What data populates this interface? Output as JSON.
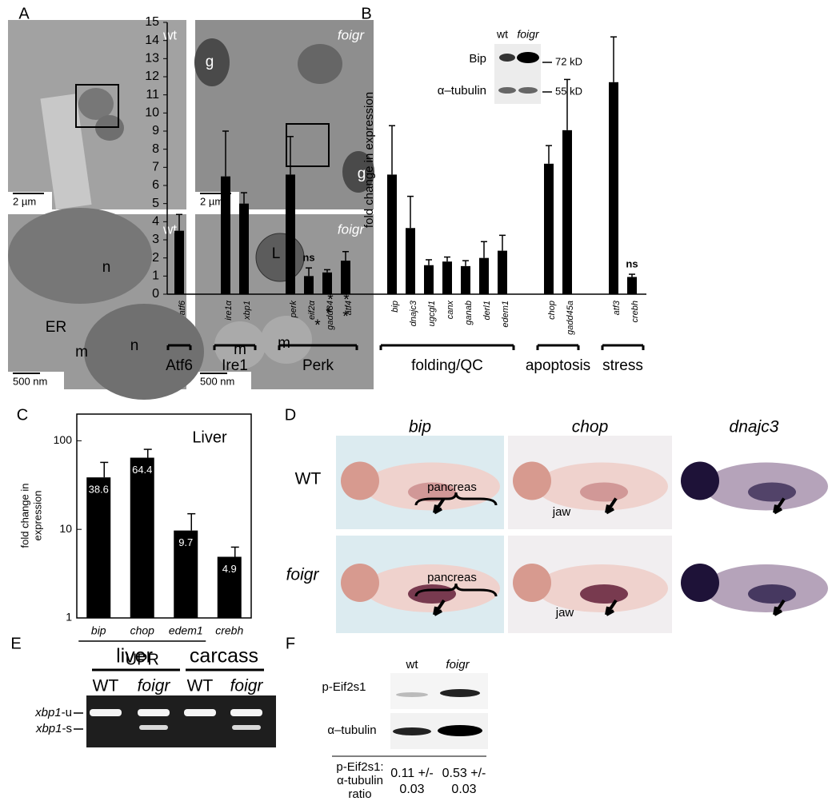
{
  "panel_labels": [
    "A",
    "B",
    "C",
    "D",
    "E",
    "F"
  ],
  "panel_a": {
    "images": [
      {
        "genotype": "wt",
        "scale": "2 µm",
        "labels": []
      },
      {
        "genotype": "foigr",
        "scale": "2 µm",
        "labels": [
          "g",
          "g"
        ]
      },
      {
        "genotype": "wt",
        "scale": "500 nm",
        "labels": [
          "n",
          "ER",
          "n",
          "m"
        ]
      },
      {
        "genotype": "foigr",
        "scale": "500 nm",
        "labels": [
          "L",
          "m",
          "m",
          "*",
          "*",
          "*",
          "*",
          "*"
        ]
      }
    ]
  },
  "chart_data": [
    {
      "type": "bar",
      "y_label": "fold change in expression",
      "categories": [
        "atf6",
        "ire1α",
        "xbp1",
        "perk",
        "eif2α",
        "gadd34",
        "atf4",
        "bip",
        "dnajc3",
        "ugcgl1",
        "canx",
        "ganab",
        "derl1",
        "edem1",
        "chop",
        "gadd45a",
        "atf3",
        "crebh"
      ],
      "category_groups": [
        "Atf6",
        "Ire1",
        "Ire1",
        "Perk",
        "Perk",
        "Perk",
        "Perk",
        "folding/QC",
        "folding/QC",
        "folding/QC",
        "folding/QC",
        "folding/QC",
        "folding/QC",
        "folding/QC",
        "apoptosis",
        "apoptosis",
        "stress",
        "stress"
      ],
      "values": [
        3.5,
        6.5,
        5.0,
        6.6,
        1.0,
        1.2,
        1.85,
        6.6,
        3.65,
        1.6,
        1.8,
        1.55,
        2.0,
        2.4,
        7.2,
        9.05,
        11.7,
        0.95
      ],
      "errors": [
        0.9,
        2.5,
        0.6,
        2.1,
        0.45,
        0.15,
        0.5,
        2.7,
        1.75,
        0.3,
        0.25,
        0.3,
        0.9,
        0.85,
        1.0,
        2.8,
        2.5,
        0.15
      ],
      "value_notes": [
        null,
        null,
        null,
        null,
        "ns",
        null,
        null,
        null,
        null,
        null,
        null,
        null,
        null,
        null,
        null,
        null,
        null,
        "ns"
      ],
      "color": "#000000",
      "ylim": [
        0,
        15
      ],
      "yticks": [
        0,
        1,
        2,
        3,
        4,
        5,
        6,
        7,
        8,
        9,
        10,
        11,
        12,
        13,
        14,
        15
      ],
      "inset": {
        "columns": [
          "wt",
          "foigr"
        ],
        "rows": [
          "Bip",
          "α–tubulin"
        ],
        "sizes": [
          "72 kD",
          "55 kD"
        ]
      }
    },
    {
      "type": "bar",
      "title": "Liver",
      "y_label": [
        "fold change in",
        "expression"
      ],
      "categories": [
        "bip",
        "chop",
        "edem1",
        "crebh"
      ],
      "values": [
        38.6,
        64.4,
        9.7,
        4.9
      ],
      "errors": [
        18.4,
        15.6,
        5.3,
        1.4
      ],
      "color": "#000000",
      "ylim": [
        1,
        200
      ],
      "yticks": [
        1,
        10,
        100
      ],
      "log_scale": true,
      "group_label": "UPR",
      "group_members": [
        "bip",
        "chop",
        "edem1"
      ]
    }
  ],
  "panel_d": {
    "columns": [
      "bip",
      "chop",
      "dnajc3"
    ],
    "rows": [
      "WT",
      "foigr"
    ],
    "labels": [
      "pancreas",
      "pancreas",
      "jaw",
      "jaw"
    ]
  },
  "panel_e": {
    "groups": [
      "liver",
      "carcass"
    ],
    "lanes": [
      "WT",
      "foigr",
      "WT",
      "foigr"
    ],
    "bands": [
      {
        "gene": "xbp1",
        "suffix": "-u"
      },
      {
        "gene": "xbp1",
        "suffix": "-s"
      }
    ]
  },
  "panel_f": {
    "lanes": [
      "wt",
      "foigr"
    ],
    "rows": [
      "p-Eif2s1",
      "α–tubulin"
    ],
    "ratio_label": [
      "p-Eif2s1:",
      "α-tubulin",
      "ratio"
    ],
    "ratios": [
      [
        "0.11 +/-",
        "0.03"
      ],
      [
        "0.53 +/-",
        "0.03"
      ]
    ]
  }
}
